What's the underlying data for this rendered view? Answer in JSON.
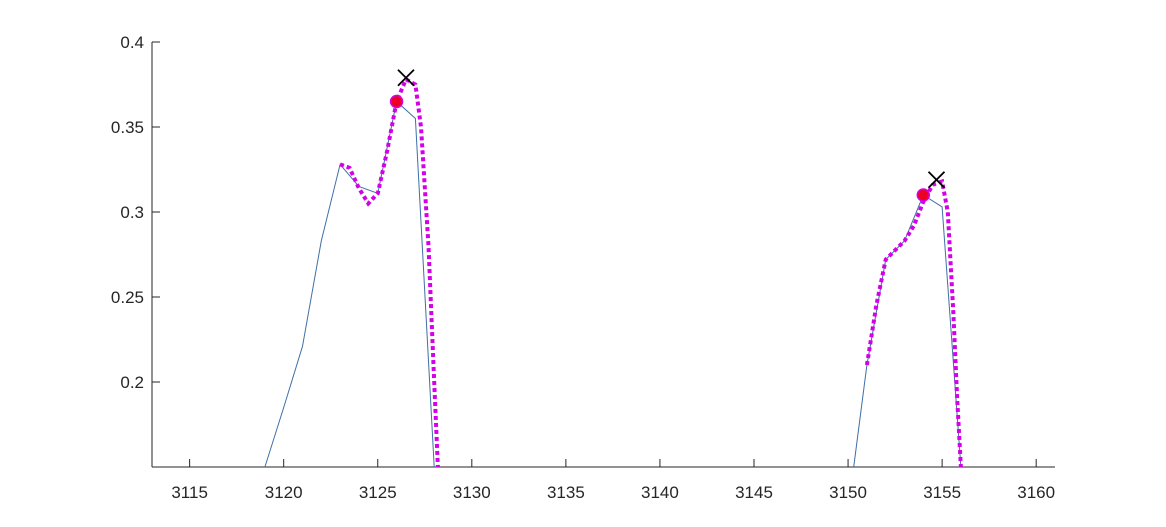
{
  "chart_data": {
    "type": "line",
    "title": "",
    "xlabel": "",
    "ylabel": "",
    "xlim": [
      3113,
      3161
    ],
    "ylim": [
      0.15,
      0.4
    ],
    "grid": false,
    "legend": "none",
    "x_ticks": [
      3115,
      3120,
      3125,
      3130,
      3135,
      3140,
      3145,
      3150,
      3155,
      3160
    ],
    "x_tick_labels": [
      "3115",
      "3120",
      "3125",
      "3130",
      "3135",
      "3140",
      "3145",
      "3150",
      "3155",
      "3160"
    ],
    "y_ticks": [
      0.2,
      0.25,
      0.3,
      0.35,
      0.4
    ],
    "y_tick_labels": [
      "0.2",
      "0.25",
      "0.3",
      "0.35",
      "0.4"
    ],
    "series": [
      {
        "style": "thin-solid",
        "color": "#3f6fa6",
        "segments": [
          [
            [
              3119,
              0.15
            ],
            [
              3120,
              0.185
            ],
            [
              3121,
              0.221
            ],
            [
              3122,
              0.283
            ],
            [
              3123,
              0.328
            ],
            [
              3124,
              0.315
            ],
            [
              3125,
              0.311
            ],
            [
              3126,
              0.365
            ],
            [
              3127,
              0.355
            ],
            [
              3128,
              0.15
            ]
          ],
          [
            [
              3150.3,
              0.15
            ],
            [
              3151,
              0.21
            ],
            [
              3152,
              0.272
            ],
            [
              3153,
              0.283
            ],
            [
              3154,
              0.31
            ],
            [
              3155,
              0.303
            ],
            [
              3156,
              0.15
            ]
          ]
        ]
      },
      {
        "style": "thick-dotted",
        "color": "#d400e8",
        "segments": [
          [
            [
              3123,
              0.328
            ],
            [
              3123.5,
              0.326
            ],
            [
              3124,
              0.314
            ],
            [
              3124.5,
              0.305
            ],
            [
              3125,
              0.311
            ],
            [
              3125.5,
              0.336
            ],
            [
              3126,
              0.365
            ],
            [
              3126.5,
              0.378
            ],
            [
              3127,
              0.375
            ],
            [
              3127.3,
              0.35
            ],
            [
              3127.7,
              0.28
            ],
            [
              3128,
              0.2
            ],
            [
              3128.2,
              0.15
            ]
          ],
          [
            [
              3151,
              0.21
            ],
            [
              3151.5,
              0.245
            ],
            [
              3152,
              0.272
            ],
            [
              3153,
              0.283
            ],
            [
              3153.5,
              0.292
            ],
            [
              3154,
              0.306
            ],
            [
              3154.5,
              0.316
            ],
            [
              3155,
              0.318
            ],
            [
              3155.3,
              0.3
            ],
            [
              3155.6,
              0.24
            ],
            [
              3155.8,
              0.19
            ],
            [
              3156,
              0.15
            ]
          ]
        ]
      }
    ],
    "markers_dot": {
      "color": "#ee0022",
      "edge_color": "#d400e8",
      "points": [
        [
          3126,
          0.365
        ],
        [
          3154,
          0.31
        ]
      ]
    },
    "markers_x": {
      "color": "#000000",
      "points": [
        [
          3126.5,
          0.379
        ],
        [
          3154.7,
          0.319
        ]
      ]
    }
  }
}
